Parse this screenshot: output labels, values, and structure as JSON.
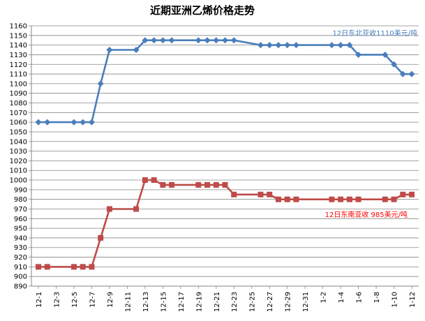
{
  "chart_data": {
    "type": "line",
    "title": "近期亚洲乙烯价格走势",
    "xlabel": "",
    "ylabel": "",
    "ylim": [
      890,
      1160
    ],
    "y_step": 10,
    "grid": "horizontal",
    "x_tick_labels": [
      "12-1",
      "12-3",
      "12-5",
      "12-7",
      "12-9",
      "12-11",
      "12-13",
      "12-15",
      "12-17",
      "12-19",
      "12-21",
      "12-23",
      "12-25",
      "12-27",
      "12-29",
      "12-31",
      "1-2",
      "1-4",
      "1-6",
      "1-8",
      "1-10",
      "1-12"
    ],
    "series": [
      {
        "name": "",
        "color": "#4A7EBB",
        "marker": "diamond",
        "annotation": "12日东北亚收1110美元/吨",
        "annotation_color": "#4A7EBB",
        "points": [
          {
            "x": "12-1",
            "y": 1060
          },
          {
            "x": "12-2",
            "y": 1060
          },
          {
            "x": "12-5",
            "y": 1060
          },
          {
            "x": "12-6",
            "y": 1060
          },
          {
            "x": "12-7",
            "y": 1060
          },
          {
            "x": "12-8",
            "y": 1100
          },
          {
            "x": "12-9",
            "y": 1135
          },
          {
            "x": "12-12",
            "y": 1135
          },
          {
            "x": "12-13",
            "y": 1145
          },
          {
            "x": "12-14",
            "y": 1145
          },
          {
            "x": "12-15",
            "y": 1145
          },
          {
            "x": "12-16",
            "y": 1145
          },
          {
            "x": "12-19",
            "y": 1145
          },
          {
            "x": "12-20",
            "y": 1145
          },
          {
            "x": "12-21",
            "y": 1145
          },
          {
            "x": "12-22",
            "y": 1145
          },
          {
            "x": "12-23",
            "y": 1145
          },
          {
            "x": "12-26",
            "y": 1140
          },
          {
            "x": "12-27",
            "y": 1140
          },
          {
            "x": "12-28",
            "y": 1140
          },
          {
            "x": "12-29",
            "y": 1140
          },
          {
            "x": "12-30",
            "y": 1140
          },
          {
            "x": "1-3",
            "y": 1140
          },
          {
            "x": "1-4",
            "y": 1140
          },
          {
            "x": "1-5",
            "y": 1140
          },
          {
            "x": "1-6",
            "y": 1130
          },
          {
            "x": "1-9",
            "y": 1130
          },
          {
            "x": "1-10",
            "y": 1120
          },
          {
            "x": "1-11",
            "y": 1110
          },
          {
            "x": "1-12",
            "y": 1110
          }
        ]
      },
      {
        "name": "",
        "color": "#BE4B48",
        "marker": "square",
        "annotation": "12日东南亚收 985美元/吨",
        "annotation_color": "#FF0000",
        "points": [
          {
            "x": "12-1",
            "y": 910
          },
          {
            "x": "12-2",
            "y": 910
          },
          {
            "x": "12-5",
            "y": 910
          },
          {
            "x": "12-6",
            "y": 910
          },
          {
            "x": "12-7",
            "y": 910
          },
          {
            "x": "12-8",
            "y": 940
          },
          {
            "x": "12-9",
            "y": 970
          },
          {
            "x": "12-12",
            "y": 970
          },
          {
            "x": "12-13",
            "y": 1000
          },
          {
            "x": "12-14",
            "y": 1000
          },
          {
            "x": "12-15",
            "y": 995
          },
          {
            "x": "12-16",
            "y": 995
          },
          {
            "x": "12-19",
            "y": 995
          },
          {
            "x": "12-20",
            "y": 995
          },
          {
            "x": "12-21",
            "y": 995
          },
          {
            "x": "12-22",
            "y": 995
          },
          {
            "x": "12-23",
            "y": 985
          },
          {
            "x": "12-26",
            "y": 985
          },
          {
            "x": "12-27",
            "y": 985
          },
          {
            "x": "12-28",
            "y": 980
          },
          {
            "x": "12-29",
            "y": 980
          },
          {
            "x": "12-30",
            "y": 980
          },
          {
            "x": "1-3",
            "y": 980
          },
          {
            "x": "1-4",
            "y": 980
          },
          {
            "x": "1-5",
            "y": 980
          },
          {
            "x": "1-6",
            "y": 980
          },
          {
            "x": "1-9",
            "y": 980
          },
          {
            "x": "1-10",
            "y": 980
          },
          {
            "x": "1-11",
            "y": 985
          },
          {
            "x": "1-12",
            "y": 985
          }
        ]
      }
    ]
  }
}
